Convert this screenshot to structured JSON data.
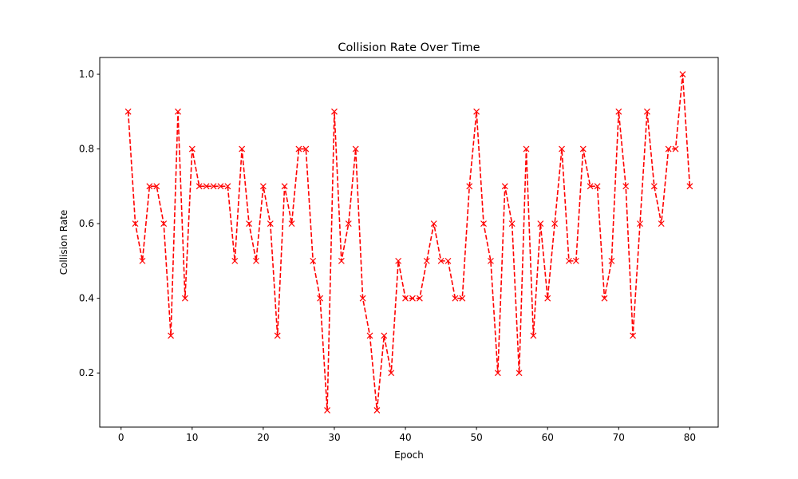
{
  "chart_data": {
    "type": "line",
    "title": "Collision Rate Over Time",
    "xlabel": "Epoch",
    "ylabel": "Collision Rate",
    "xlim": [
      -3,
      84
    ],
    "ylim": [
      0.055,
      1.045
    ],
    "xticks": [
      0,
      10,
      20,
      30,
      40,
      50,
      60,
      70,
      80
    ],
    "yticks": [
      0.2,
      0.4,
      0.6,
      0.8,
      1.0
    ],
    "grid": false,
    "line_style": "dashed",
    "marker": "x",
    "color": "#ff0000",
    "series": [
      {
        "x": [
          1,
          2,
          3,
          4,
          5,
          6,
          7,
          8,
          9,
          10,
          11,
          12,
          13,
          14,
          15,
          16,
          17,
          18,
          19,
          20,
          21,
          22,
          23,
          24,
          25,
          26,
          27,
          28,
          29,
          30,
          31,
          32,
          33,
          34,
          35,
          36,
          37,
          38,
          39,
          40,
          41,
          42,
          43,
          44,
          45,
          46,
          47,
          48,
          49,
          50,
          51,
          52,
          53,
          54,
          55,
          56,
          57,
          58,
          59,
          60,
          61,
          62,
          63,
          64,
          65,
          66,
          67,
          68,
          69,
          70,
          71,
          72,
          73,
          74,
          75,
          76,
          77,
          78,
          79,
          80
        ],
        "values": [
          0.9,
          0.6,
          0.5,
          0.7,
          0.7,
          0.6,
          0.3,
          0.9,
          0.4,
          0.8,
          0.7,
          0.7,
          0.7,
          0.7,
          0.7,
          0.5,
          0.8,
          0.6,
          0.5,
          0.7,
          0.6,
          0.3,
          0.7,
          0.6,
          0.8,
          0.8,
          0.5,
          0.4,
          0.1,
          0.9,
          0.5,
          0.6,
          0.8,
          0.4,
          0.3,
          0.1,
          0.3,
          0.2,
          0.5,
          0.4,
          0.4,
          0.4,
          0.5,
          0.6,
          0.5,
          0.5,
          0.4,
          0.4,
          0.7,
          0.9,
          0.6,
          0.5,
          0.2,
          0.7,
          0.6,
          0.2,
          0.8,
          0.3,
          0.6,
          0.4,
          0.6,
          0.8,
          0.5,
          0.5,
          0.8,
          0.7,
          0.7,
          0.4,
          0.5,
          0.9,
          0.7,
          0.3,
          0.6,
          0.9,
          0.7,
          0.6,
          0.8,
          0.8,
          1.0,
          0.7
        ]
      }
    ]
  }
}
